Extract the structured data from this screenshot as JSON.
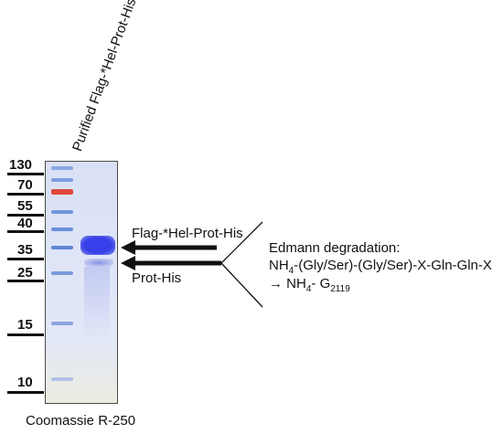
{
  "lane_label": "Purified Flag-*Hel-Prot-His",
  "markers": [
    "130",
    "70",
    "55",
    "40",
    "35",
    "25",
    "15",
    "10"
  ],
  "bands": {
    "upper_label": "Flag-*Hel-Prot-His",
    "lower_label": "Prot-His"
  },
  "edman": {
    "title": "Edmann degradation:",
    "line1_prefix": "NH",
    "line1_sub": "4",
    "line1_rest": "-(Gly/Ser)-(Gly/Ser)-X-Gln-Gln-X",
    "line2_arrow": "→",
    "line2_prefix": " NH",
    "line2_sub1": "4",
    "line2_mid": "- G",
    "line2_sub2": "2119"
  },
  "stain_caption": "Coomassie R-250",
  "colors": {
    "main_band": "#3a3ff0",
    "ladder_red": "#e0483c",
    "ladder_blue": "#5f86d6",
    "ink": "#111111"
  }
}
